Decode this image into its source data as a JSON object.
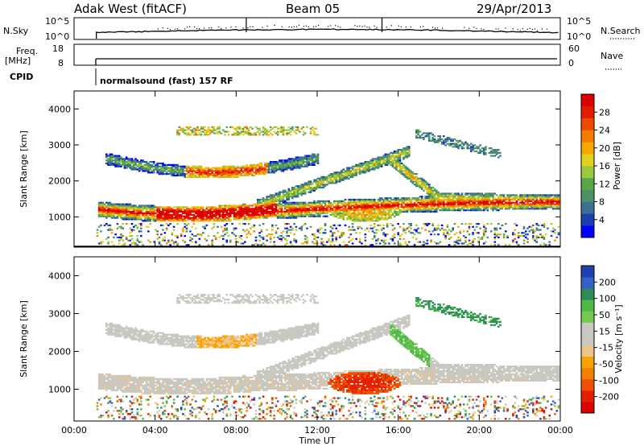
{
  "header": {
    "station": "Adak West (fitACF)",
    "beam": "Beam 05",
    "date": "29/Apr/2013"
  },
  "noise_panel": {
    "left_label": "N.Sky",
    "left_ticks": [
      "10^5",
      "10^0"
    ],
    "right_ticks": [
      "10^5",
      "10^0"
    ],
    "right_label": "N.Search"
  },
  "freq_panel": {
    "left_label_top": "Freq.",
    "left_label_bottom": "[MHz]",
    "left_ticks": [
      "18",
      "8"
    ],
    "right_ticks": [
      "60",
      "0"
    ],
    "right_label": "Nave"
  },
  "cpid": {
    "label": "CPID",
    "program": "normalsound (fast) 157 RF"
  },
  "chart_data": [
    {
      "type": "heatmap",
      "quantity": "Power",
      "ylabel": "Slant Range [km]",
      "yticks": [
        "1000",
        "2000",
        "3000",
        "4000"
      ],
      "ylim": [
        180,
        4500
      ],
      "xlim": [
        0,
        24
      ],
      "colorbar": {
        "label": "Power [dB]",
        "ticks": [
          "4",
          "8",
          "12",
          "16",
          "20",
          "24",
          "28"
        ],
        "colors": [
          "#0000ff",
          "#1c3fae",
          "#3b6f96",
          "#4f8f6a",
          "#59a64a",
          "#99c93c",
          "#e3cf1e",
          "#f8a600",
          "#f47c00",
          "#ee4a00",
          "#e41c00",
          "#dc0000"
        ]
      }
    },
    {
      "type": "heatmap",
      "quantity": "Velocity",
      "ylabel": "Slant Range [km]",
      "yticks": [
        "1000",
        "2000",
        "3000",
        "4000"
      ],
      "ylim": [
        180,
        4500
      ],
      "xlim": [
        0,
        24
      ],
      "xlabel": "Time UT",
      "xticks": [
        "00:00",
        "04:00",
        "08:00",
        "12:00",
        "16:00",
        "20:00",
        "00:00"
      ],
      "colorbar": {
        "label": "Velocity [m s⁻¹]",
        "ticks": [
          "200",
          "100",
          "50",
          "15",
          "-15",
          "-50",
          "-100",
          "-200"
        ],
        "colors": [
          "#1f3fb0",
          "#3560c8",
          "#2e8c58",
          "#4fb84a",
          "#76c950",
          "#c8c8c0",
          "#c8c8c0",
          "#f0c28a",
          "#f7a300",
          "#f28000",
          "#ec5000",
          "#e42000",
          "#dd0000"
        ]
      }
    }
  ]
}
